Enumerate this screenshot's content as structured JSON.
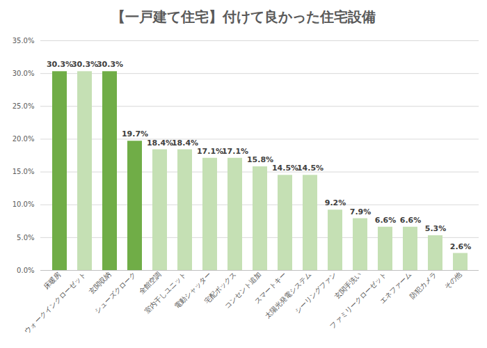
{
  "chart_data": {
    "type": "bar",
    "title": "【一戸建て住宅】付けて良かった住宅設備",
    "categories": [
      "床暖房",
      "ウォークインクローゼット",
      "玄関収納",
      "シューズクローク",
      "全館空調",
      "室内干しユニット",
      "電動シャッター",
      "宅配ボックス",
      "コンセント追加",
      "スマートキー",
      "太陽光発電システム",
      "シーリングファン",
      "玄関手洗い",
      "ファミリークローゼット",
      "エネファーム",
      "防犯カメラ",
      "その他"
    ],
    "values": [
      30.3,
      30.3,
      30.3,
      19.7,
      18.4,
      18.4,
      17.1,
      17.1,
      15.8,
      14.5,
      14.5,
      9.2,
      7.9,
      6.6,
      6.6,
      5.3,
      2.6
    ],
    "value_labels": [
      "30.3%",
      "30.3%",
      "30.3%",
      "19.7%",
      "18.4%",
      "18.4%",
      "17.1%",
      "17.1%",
      "15.8%",
      "14.5%",
      "14.5%",
      "9.2%",
      "7.9%",
      "6.6%",
      "6.6%",
      "5.3%",
      "2.6%"
    ],
    "colors": [
      "#70ad47",
      "#c5e0b4",
      "#70ad47",
      "#70ad47",
      "#c5e0b4",
      "#c5e0b4",
      "#c5e0b4",
      "#c5e0b4",
      "#c5e0b4",
      "#c5e0b4",
      "#c5e0b4",
      "#c5e0b4",
      "#c5e0b4",
      "#c5e0b4",
      "#c5e0b4",
      "#c5e0b4",
      "#c5e0b4"
    ],
    "ylim": [
      0,
      35
    ],
    "yticks": [
      {
        "value": 0,
        "label": "0.0%"
      },
      {
        "value": 5,
        "label": "5.0%"
      },
      {
        "value": 10,
        "label": "10.0%"
      },
      {
        "value": 15,
        "label": "15.0%"
      },
      {
        "value": 20,
        "label": "20.0%"
      },
      {
        "value": 25,
        "label": "25.0%"
      },
      {
        "value": 30,
        "label": "30.0%"
      },
      {
        "value": 35,
        "label": "35.0%"
      }
    ],
    "grid": true,
    "data_labels": true
  }
}
